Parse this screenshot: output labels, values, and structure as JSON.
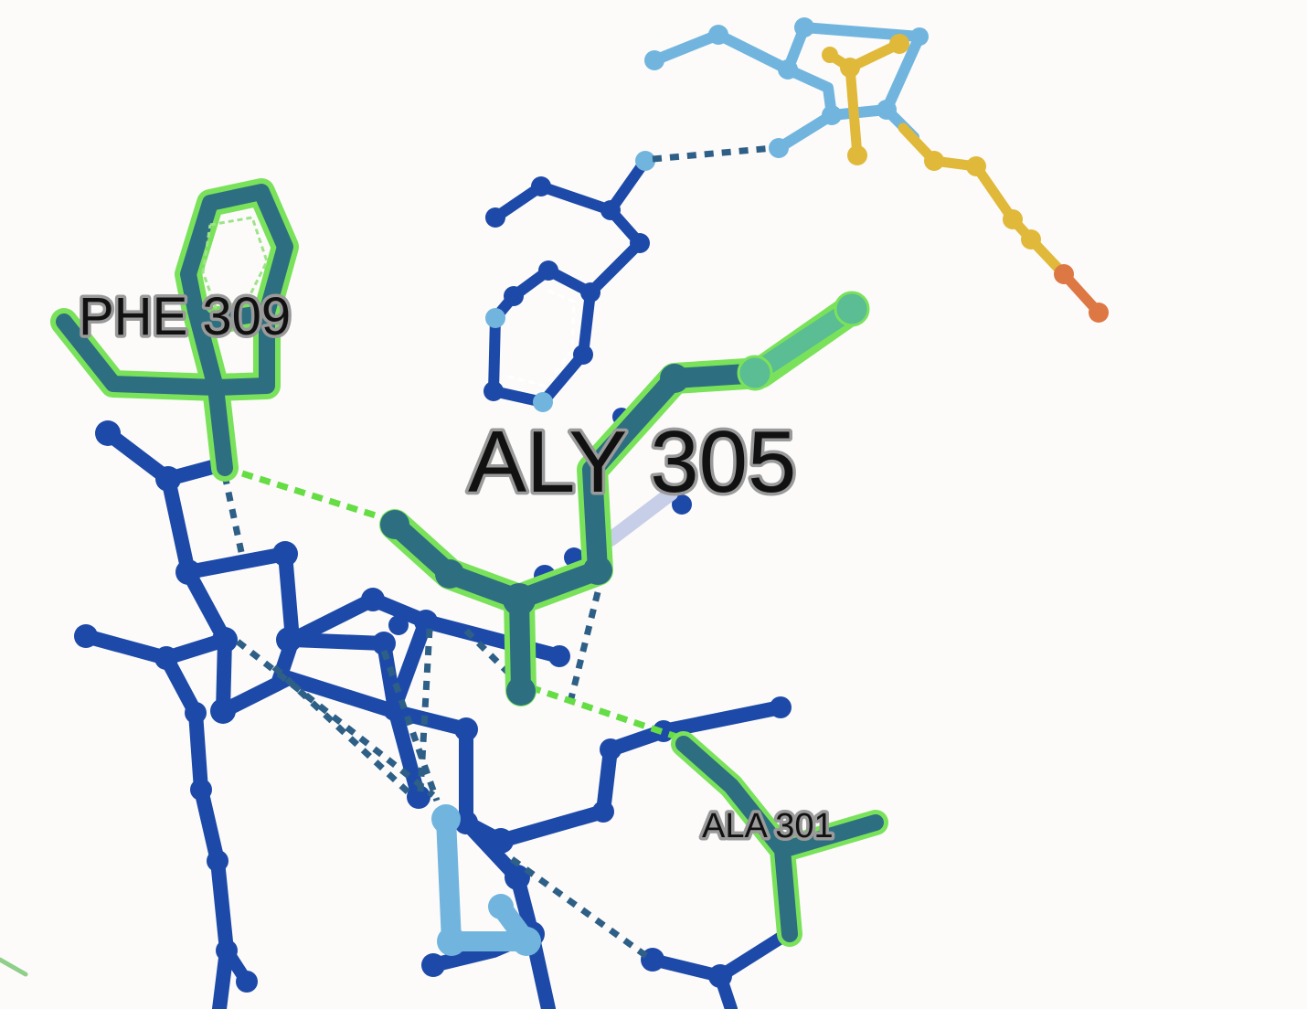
{
  "viewer": {
    "background": "#fcfbfa"
  },
  "labels": {
    "phe309": "PHE 309",
    "aly305": "ALY 305",
    "ala301": "ALA 301"
  },
  "colors": {
    "protein_dark": "#1d4aa8",
    "protein_light": "#71b5de",
    "ligand_gold": "#e0b93a",
    "ligand_orange": "#dd7744",
    "highlight_glow": "#7ae25a",
    "highlight_core": "#2d6f80",
    "hbond": "#2e5f86"
  }
}
